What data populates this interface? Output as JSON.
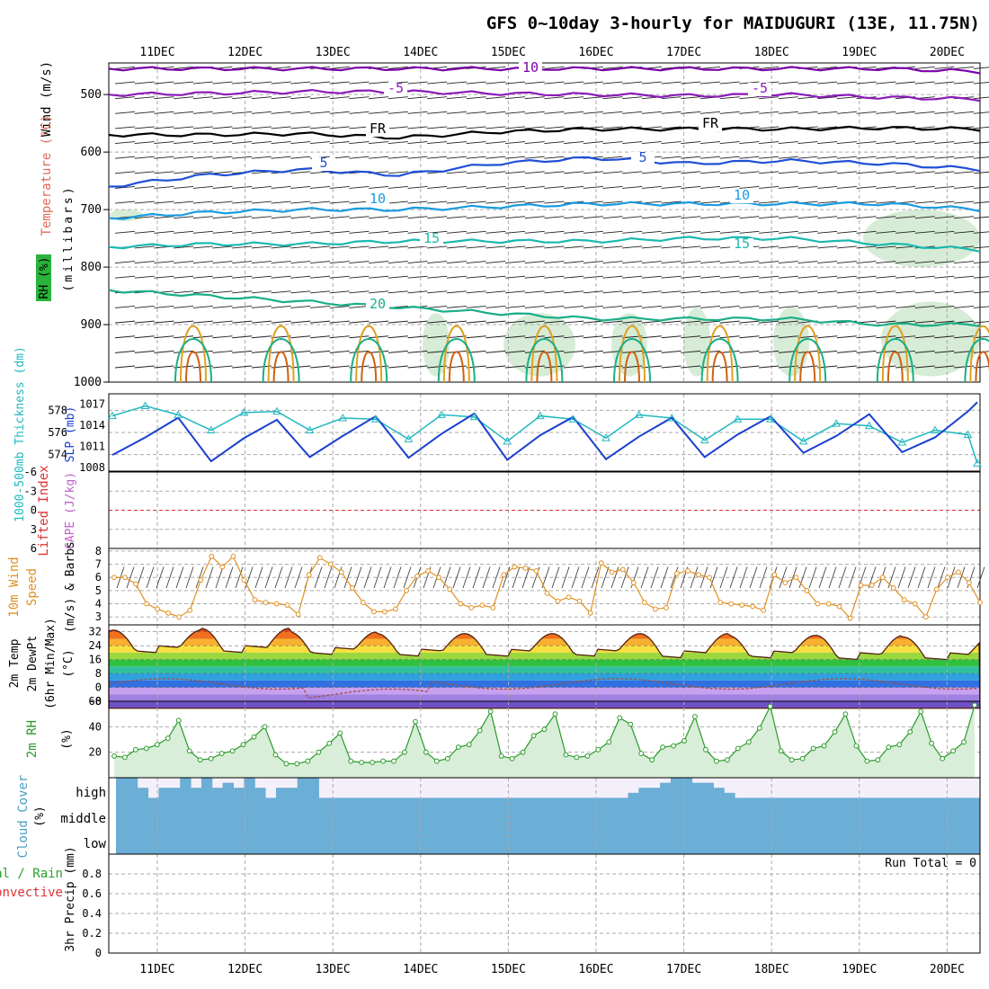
{
  "title": "GFS 0~10day 3-hourly for MAIDUGURI (13E, 11.75N)",
  "dates": [
    "11DEC",
    "12DEC",
    "13DEC",
    "14DEC",
    "15DEC",
    "16DEC",
    "17DEC",
    "18DEC",
    "19DEC",
    "20DEC"
  ],
  "colors": {
    "frame": "#000000",
    "grid": "#aaaaaa",
    "iso_neg10": "#7b00a8",
    "iso_neg5": "#8a1ab8",
    "iso_fr": "#000000",
    "iso_5": "#1f4fd6",
    "iso_10": "#1a9be0",
    "iso_15": "#1ab8b0",
    "iso_20": "#1aae88",
    "iso_25": "#e0a020",
    "iso_30": "#d06010",
    "rh_fill": "#c8e6c8",
    "thickness": "#20b8c0",
    "slp": "#1a3fd0",
    "lifted_zero": "#e03030",
    "wind10": "#e09020",
    "temp_max_fill": "#e84010",
    "dewpt": "#a05040",
    "rh2m": "#2a9a2a",
    "cloud": "#6baed6",
    "cloud_bg": "#f4f0fa",
    "precip_total": "#2aa02a",
    "precip_conv": "#e03030"
  },
  "panels": {
    "upper": {
      "ylabel_wind": "Wind (m/s)",
      "ylabel_temp": "Temperature (°C)",
      "ylabel_rh": "RH (%)",
      "ylabel_mb": "(millibars)",
      "yticks": [
        "500",
        "600",
        "700",
        "800",
        "900",
        "1000"
      ],
      "contour_labels": [
        "10",
        "-5",
        "-5",
        "FR",
        "FR",
        "5",
        "5",
        "10",
        "10",
        "15",
        "15",
        "20"
      ]
    },
    "thick": {
      "ylabel_thick": "1000-500mb Thickness (dm)",
      "ylabel_slp": "SLP (mb)",
      "left_ticks": [
        "578",
        "576",
        "574"
      ],
      "right_ticks": [
        "1017",
        "1014",
        "1011",
        "1008"
      ]
    },
    "cape": {
      "ylabel_li": "Lifted Index",
      "ylabel_cape": "CAPE (J/kg)",
      "ticks": [
        "-6",
        "-3",
        "0",
        "3",
        "6"
      ]
    },
    "wind": {
      "ylabel1": "10m Wind",
      "ylabel2": "Speed",
      "ylabel3": "(m/s) & Barbs",
      "ticks": [
        "8",
        "7",
        "6",
        "5",
        "4",
        "3"
      ]
    },
    "temp": {
      "ylabel1": "2m Temp",
      "ylabel2": "2m DewPt",
      "ylabel3": "(6hr Min/Max)",
      "ylabel4": "(°C)",
      "ticks": [
        "32",
        "24",
        "16",
        "8",
        "0",
        "-8"
      ]
    },
    "rh": {
      "ylabel1": "2m RH",
      "ylabel2": "(%)",
      "ticks": [
        "60",
        "40",
        "20"
      ]
    },
    "cloud": {
      "ylabel1": "Cloud Cover",
      "ylabel2": "(%)",
      "levels": [
        "high",
        "middle",
        "low"
      ]
    },
    "precip": {
      "ylabel_total": "Total / Rain",
      "ylabel_conv": "Convective",
      "ylabel_precip": "3hr Precip (mm)",
      "run_total": "Run Total = 0",
      "ticks": [
        "0.8",
        "0.6",
        "0.4",
        "0.2",
        "0"
      ]
    }
  },
  "chart_data": [
    {
      "type": "line",
      "name": "upper-air isotherms",
      "xlabel": "",
      "ylabel": "millibars",
      "ylim": [
        1000,
        450
      ],
      "x": [
        "11DEC",
        "12DEC",
        "13DEC",
        "14DEC",
        "15DEC",
        "16DEC",
        "17DEC",
        "18DEC",
        "19DEC",
        "20DEC"
      ],
      "series": [
        {
          "name": "-10",
          "values": [
            455,
            455,
            455,
            455,
            455,
            455,
            455,
            455,
            455,
            460
          ]
        },
        {
          "name": "-5",
          "values": [
            500,
            498,
            495,
            495,
            498,
            500,
            502,
            500,
            505,
            508
          ]
        },
        {
          "name": "FR",
          "values": [
            570,
            570,
            568,
            575,
            565,
            560,
            560,
            560,
            558,
            560
          ]
        },
        {
          "name": "5",
          "values": [
            660,
            640,
            630,
            640,
            620,
            610,
            620,
            615,
            620,
            630
          ]
        },
        {
          "name": "10",
          "values": [
            715,
            705,
            700,
            700,
            695,
            690,
            690,
            690,
            690,
            700
          ]
        },
        {
          "name": "15",
          "values": [
            765,
            760,
            760,
            755,
            755,
            755,
            750,
            750,
            760,
            770
          ]
        },
        {
          "name": "20",
          "values": [
            840,
            850,
            860,
            870,
            880,
            890,
            890,
            890,
            900,
            900
          ]
        }
      ]
    },
    {
      "type": "line",
      "name": "thickness and SLP",
      "x_hours": [
        0,
        9,
        18,
        27,
        36,
        45,
        54,
        63,
        72,
        81,
        90,
        99,
        108,
        117,
        126,
        135,
        144,
        153,
        162,
        171,
        180,
        189,
        198,
        207,
        216,
        225,
        234,
        240
      ],
      "series": [
        {
          "name": "1000-500mb Thickness (dm)",
          "values": [
            577.5,
            578.4,
            577.6,
            576.2,
            577.8,
            577.9,
            576.2,
            577.3,
            577.2,
            575.4,
            577.6,
            577.4,
            575.2,
            577.5,
            577.2,
            575.5,
            577.6,
            577.3,
            575.3,
            577.2,
            577.2,
            575.2,
            576.8,
            576.6,
            575.1,
            576.2,
            575.8,
            573.2
          ]
        },
        {
          "name": "SLP (mb)",
          "values": [
            1009.8,
            1012.3,
            1015.1,
            1008.9,
            1012.2,
            1014.8,
            1009.5,
            1012.5,
            1015.3,
            1009.4,
            1012.8,
            1015.7,
            1009.1,
            1012.6,
            1015.2,
            1009.2,
            1012.4,
            1015.1,
            1009.5,
            1012.7,
            1015.3,
            1010.1,
            1012.5,
            1015.6,
            1010.2,
            1012.3,
            1016.0,
            1017.3
          ]
        }
      ]
    },
    {
      "type": "line",
      "name": "Lifted Index / CAPE",
      "ylim": [
        6,
        -6
      ],
      "series": [
        {
          "name": "Lifted Index",
          "values": []
        }
      ]
    },
    {
      "type": "line",
      "name": "10m Wind Speed",
      "xlabel": "",
      "ylabel": "m/s",
      "ylim": [
        2.5,
        8
      ],
      "x_hours": [
        0,
        3,
        6,
        9,
        12,
        15,
        18,
        21,
        24,
        27,
        30,
        33,
        36,
        39,
        42,
        45,
        48,
        51,
        54,
        57,
        60,
        63,
        66,
        69,
        72,
        75,
        78,
        81,
        84,
        87,
        90,
        93,
        96,
        99,
        102,
        105,
        108,
        111,
        114,
        117,
        120,
        123,
        126,
        129,
        132,
        135,
        138,
        141,
        144,
        147,
        150,
        153,
        156,
        159,
        162,
        165,
        168,
        171,
        174,
        177,
        180,
        183,
        186,
        189,
        192,
        195,
        198,
        201,
        204,
        207,
        210,
        213,
        216,
        219,
        222,
        225,
        228,
        231,
        234,
        237,
        240
      ],
      "values": [
        6.0,
        6.0,
        5.5,
        4.0,
        3.6,
        3.3,
        3.0,
        3.5,
        5.8,
        7.6,
        6.8,
        7.6,
        5.8,
        4.3,
        4.1,
        4.0,
        3.9,
        3.2,
        6.2,
        7.5,
        7.0,
        6.4,
        5.2,
        4.1,
        3.4,
        3.4,
        3.6,
        5.0,
        6.1,
        6.5,
        6.0,
        5.1,
        4.0,
        3.7,
        3.9,
        3.7,
        6.2,
        6.8,
        6.7,
        6.5,
        4.8,
        4.2,
        4.5,
        4.2,
        3.3,
        7.1,
        6.4,
        6.6,
        5.6,
        4.1,
        3.6,
        3.7,
        6.3,
        6.5,
        6.2,
        6.0,
        4.1,
        4.0,
        3.9,
        3.8,
        3.5,
        6.2,
        5.6,
        6.0,
        5.0,
        4.0,
        4.0,
        3.8,
        2.9,
        5.4,
        5.4,
        6.0,
        5.2,
        4.3,
        4.0,
        3.0,
        5.1,
        6.0,
        6.4,
        5.6,
        4.1
      ]
    },
    {
      "type": "area",
      "name": "2m Temp / DewPt",
      "xlabel": "",
      "ylabel": "°C",
      "ylim": [
        -8,
        36
      ],
      "temp_max": [
        33,
        34,
        32,
        31,
        31,
        31,
        31,
        30,
        30,
        29
      ],
      "temp_min": [
        20,
        20,
        19,
        18,
        18,
        18,
        17,
        17,
        16,
        16
      ],
      "dewpt_range": [
        -8,
        8
      ]
    },
    {
      "type": "area",
      "name": "2m RH",
      "xlabel": "",
      "ylabel": "%",
      "ylim": [
        0,
        60
      ],
      "x_hours": [
        0,
        3,
        6,
        9,
        12,
        15,
        18,
        21,
        24,
        27,
        30,
        33,
        36,
        39,
        42,
        45,
        48,
        51,
        54,
        57,
        60,
        63,
        66,
        69,
        72,
        75,
        78,
        81,
        84,
        87,
        90,
        93,
        96,
        99,
        102,
        105,
        108,
        111,
        114,
        117,
        120,
        123,
        126,
        129,
        132,
        135,
        138,
        141,
        144,
        147,
        150,
        153,
        156,
        159,
        162,
        165,
        168,
        171,
        174,
        177,
        180,
        183,
        186,
        189,
        192,
        195,
        198,
        201,
        204,
        207,
        210,
        213,
        216,
        219,
        222,
        225,
        228,
        231,
        234,
        237,
        240
      ],
      "values": [
        17,
        16,
        22,
        23,
        26,
        31,
        45,
        21,
        14,
        15,
        19,
        21,
        26,
        32,
        40,
        18,
        11,
        11,
        13,
        20,
        27,
        35,
        13,
        12,
        12,
        13,
        13,
        20,
        44,
        20,
        13,
        15,
        24,
        26,
        37,
        52,
        17,
        15,
        20,
        33,
        38,
        50,
        18,
        16,
        17,
        22,
        28,
        47,
        42,
        19,
        14,
        24,
        25,
        29,
        48,
        22,
        13,
        14,
        23,
        28,
        39,
        56,
        21,
        14,
        15,
        23,
        25,
        36,
        50,
        25,
        13,
        14,
        24,
        26,
        36,
        52,
        27,
        15,
        21,
        28,
        57
      ]
    },
    {
      "type": "bar",
      "name": "Cloud Cover high",
      "ylabel": "%",
      "ylim": [
        0,
        100
      ],
      "values": [
        100,
        100,
        60,
        20,
        60,
        60,
        100,
        60,
        100,
        60,
        80,
        60,
        100,
        60,
        20,
        60,
        60,
        100,
        100,
        20,
        20,
        20,
        20,
        20,
        20,
        20,
        20,
        20,
        20,
        20,
        20,
        20,
        20,
        20,
        20,
        20,
        20,
        20,
        20,
        20,
        20,
        20,
        20,
        20,
        20,
        20,
        20,
        20,
        40,
        60,
        60,
        80,
        100,
        100,
        80,
        80,
        60,
        40,
        20,
        20,
        20,
        20,
        20,
        20,
        20,
        20,
        20,
        20,
        20,
        20,
        20,
        20,
        20,
        20,
        20,
        20,
        20,
        20,
        20,
        20,
        20
      ]
    },
    {
      "type": "bar",
      "name": "3hr Precip",
      "ylabel": "mm",
      "ylim": [
        0,
        1
      ],
      "values": []
    }
  ]
}
